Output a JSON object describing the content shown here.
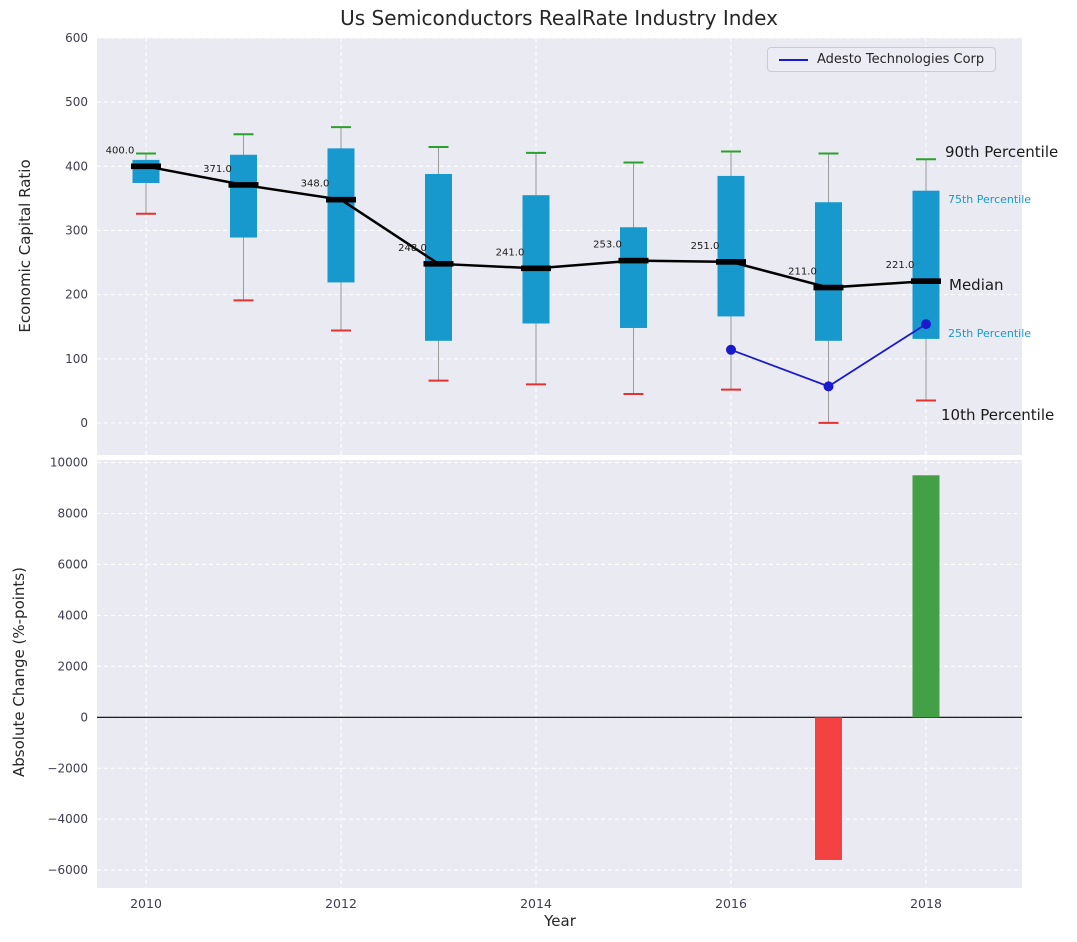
{
  "figure": {
    "title": "Us Semiconductors RealRate Industry Index"
  },
  "legend": {
    "series_label": "Adesto Technologies Corp"
  },
  "annotations": {
    "p90": "90th Percentile",
    "p75": "75th Percentile",
    "median": "Median",
    "p25": "25th Percentile",
    "p10": "10th Percentile"
  },
  "colors": {
    "panel": "#eaeaf2",
    "grid": "#ffffff",
    "box": "#1899ce",
    "p90_cap": "#2ca02c",
    "p10_cap": "#e53131",
    "median": "#000000",
    "whisker": "#9a9a9a",
    "company_line": "#1a1acd",
    "bar_negative": "#f44242",
    "bar_positive": "#43a047",
    "tick_label": "#3d3d50"
  },
  "chart_data": [
    {
      "type": "boxplot-line",
      "title": "Us Semiconductors RealRate Industry Index",
      "ylabel": "Economic Capital Ratio",
      "ylim": [
        -50,
        600
      ],
      "yticks": [
        0,
        100,
        200,
        300,
        400,
        500,
        600
      ],
      "xticks": [
        2010,
        2012,
        2014,
        2016,
        2018
      ],
      "grid": true,
      "legend_position": "upper right",
      "years": [
        2010,
        2011,
        2012,
        2013,
        2014,
        2015,
        2016,
        2017,
        2018
      ],
      "median": [
        400,
        371,
        348,
        248,
        241,
        253,
        251,
        211,
        221
      ],
      "median_labels": [
        "400.0",
        "371.0",
        "348.0",
        "248.0",
        "241.0",
        "253.0",
        "251.0",
        "211.0",
        "221.0"
      ],
      "p90": [
        420,
        450,
        461,
        430,
        421,
        406,
        423,
        420,
        411
      ],
      "p75": [
        410,
        418,
        428,
        388,
        355,
        305,
        385,
        344,
        362
      ],
      "p25": [
        374,
        289,
        219,
        128,
        155,
        148,
        166,
        128,
        131
      ],
      "p10": [
        326,
        191,
        144,
        66,
        60,
        45,
        52,
        0,
        35
      ],
      "series": [
        {
          "name": "Adesto Technologies Corp",
          "x": [
            2016,
            2017,
            2018
          ],
          "y": [
            114,
            57,
            154
          ]
        }
      ]
    },
    {
      "type": "bar",
      "ylabel": "Absolute Change (%-points)",
      "xlabel": "Year",
      "ylim": [
        -6700,
        10100
      ],
      "yticks": [
        -6000,
        -4000,
        -2000,
        0,
        2000,
        4000,
        6000,
        8000,
        10000
      ],
      "xticks": [
        2010,
        2012,
        2014,
        2016,
        2018
      ],
      "grid": true,
      "zero_line": true,
      "bars": [
        {
          "x": 2017,
          "value": -5600,
          "color": "#f44242"
        },
        {
          "x": 2018,
          "value": 9500,
          "color": "#43a047"
        }
      ]
    }
  ]
}
